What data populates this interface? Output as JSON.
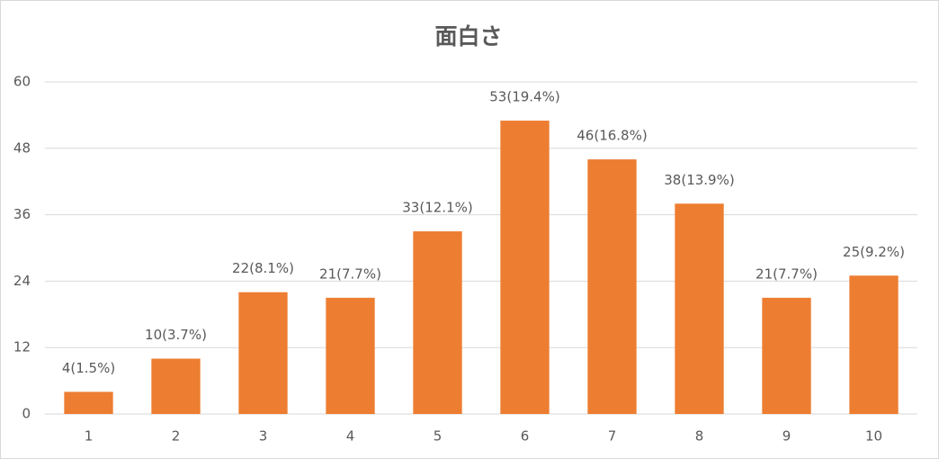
{
  "chart_data": {
    "type": "bar",
    "title": "面白さ",
    "categories": [
      "1",
      "2",
      "3",
      "4",
      "5",
      "6",
      "7",
      "8",
      "9",
      "10"
    ],
    "values": [
      4,
      10,
      22,
      21,
      33,
      53,
      46,
      38,
      21,
      25
    ],
    "value_labels": [
      "4(1.5%)",
      "10(3.7%)",
      "22(8.1%)",
      "21(7.7%)",
      "33(12.1%)",
      "53(19.4%)",
      "46(16.8%)",
      "38(13.9%)",
      "21(7.7%)",
      "25(9.2%)"
    ],
    "color": "#ed7d31",
    "ylim": [
      0,
      60
    ],
    "yticks": [
      0,
      12,
      24,
      36,
      48,
      60
    ],
    "grid": true
  }
}
